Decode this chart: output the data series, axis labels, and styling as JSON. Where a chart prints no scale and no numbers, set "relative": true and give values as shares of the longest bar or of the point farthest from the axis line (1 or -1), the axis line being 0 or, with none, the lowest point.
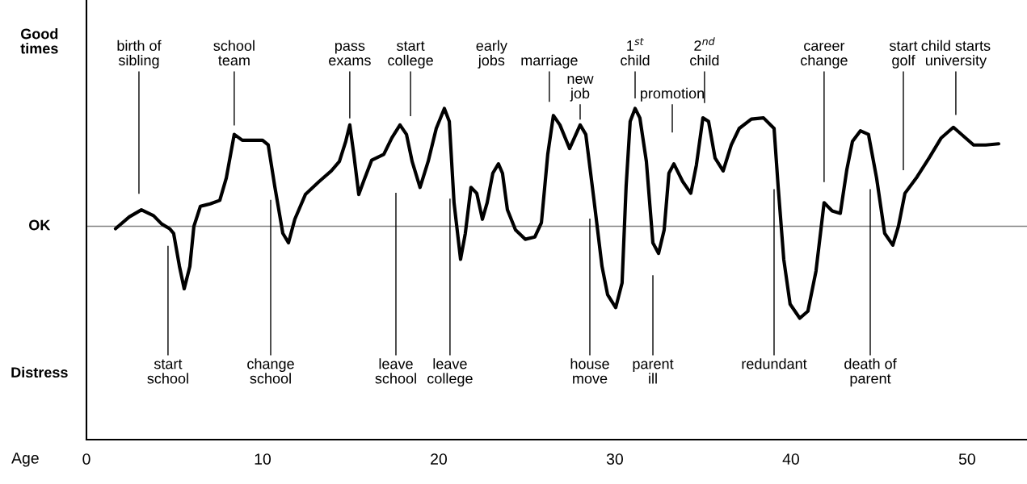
{
  "chart_data": {
    "type": "line",
    "xlabel": "Age",
    "relative": true,
    "x": [
      1.65,
      2.43,
      3.12,
      3.81,
      4.27,
      4.72,
      4.95,
      5.28,
      5.55,
      5.87,
      6.1,
      6.47,
      7.02,
      7.57,
      7.94,
      8.39,
      8.85,
      9.4,
      10.0,
      10.32,
      10.69,
      11.15,
      11.47,
      11.83,
      12.43,
      13.21,
      13.9,
      14.36,
      14.72,
      14.95,
      15.18,
      15.46,
      15.73,
      16.19,
      16.88,
      17.34,
      17.8,
      18.17,
      18.49,
      18.94,
      19.4,
      19.86,
      20.32,
      20.6,
      20.87,
      21.24,
      21.51,
      21.83,
      22.16,
      22.48,
      22.75,
      23.07,
      23.39,
      23.62,
      23.9,
      24.36,
      24.91,
      25.46,
      25.83,
      26.19,
      26.51,
      26.88,
      27.43,
      28.03,
      28.35,
      28.81,
      29.27,
      29.59,
      30.05,
      30.41,
      30.64,
      30.87,
      31.15,
      31.42,
      31.79,
      32.16,
      32.48,
      32.8,
      33.07,
      33.35,
      33.85,
      34.31,
      34.63,
      35.0,
      35.32,
      35.69,
      36.15,
      36.61,
      37.06,
      37.75,
      38.44,
      39.04,
      39.27,
      39.59,
      39.95,
      40.5,
      40.96,
      41.42,
      41.88,
      42.34,
      42.8,
      43.17,
      43.49,
      43.94,
      44.4,
      44.86,
      45.32,
      45.78,
      46.1,
      46.47,
      47.16,
      47.84,
      48.53,
      49.22,
      49.91,
      50.37,
      51.06,
      51.79
    ],
    "series": [
      {
        "color": "#000000",
        "values": [
          -0.02,
          0.08,
          0.14,
          0.09,
          0.02,
          -0.02,
          -0.06,
          -0.34,
          -0.53,
          -0.34,
          0.0,
          0.17,
          0.19,
          0.22,
          0.41,
          0.78,
          0.73,
          0.73,
          0.73,
          0.69,
          0.34,
          -0.06,
          -0.14,
          0.06,
          0.27,
          0.38,
          0.47,
          0.55,
          0.72,
          0.86,
          0.61,
          0.27,
          0.38,
          0.56,
          0.61,
          0.75,
          0.86,
          0.78,
          0.55,
          0.33,
          0.55,
          0.83,
          1.0,
          0.89,
          0.2,
          -0.28,
          -0.06,
          0.33,
          0.28,
          0.06,
          0.2,
          0.45,
          0.53,
          0.45,
          0.14,
          -0.03,
          -0.11,
          -0.09,
          0.03,
          0.61,
          0.94,
          0.86,
          0.66,
          0.86,
          0.78,
          0.23,
          -0.34,
          -0.58,
          -0.69,
          -0.48,
          0.34,
          0.89,
          1.0,
          0.92,
          0.55,
          -0.14,
          -0.23,
          -0.03,
          0.45,
          0.53,
          0.38,
          0.28,
          0.52,
          0.92,
          0.89,
          0.58,
          0.47,
          0.69,
          0.83,
          0.91,
          0.92,
          0.83,
          0.34,
          -0.28,
          -0.66,
          -0.78,
          -0.72,
          -0.38,
          0.2,
          0.13,
          0.11,
          0.48,
          0.72,
          0.81,
          0.78,
          0.41,
          -0.06,
          -0.16,
          0.0,
          0.28,
          0.42,
          0.58,
          0.75,
          0.84,
          0.75,
          0.69,
          0.69,
          0.7
        ]
      }
    ],
    "xlim": [
      0,
      53.4
    ],
    "xticks": [
      0,
      10,
      20,
      30,
      40,
      50
    ],
    "ref_lines": [
      {
        "axis": "y",
        "value": 0,
        "color": "#808080"
      }
    ],
    "annotations": [
      "Good times",
      "OK",
      "Distress",
      "birth of sibling",
      "school team",
      "pass exams",
      "start college",
      "early jobs",
      "marriage",
      "new job",
      "1$^{st}$ child",
      "promotion",
      "2$^{nd}$ child",
      "career change",
      "start golf",
      "child starts university",
      "start school",
      "change school",
      "leave school",
      "leave college",
      "house move",
      "parent ill",
      "redundant",
      "death of parent"
    ]
  }
}
